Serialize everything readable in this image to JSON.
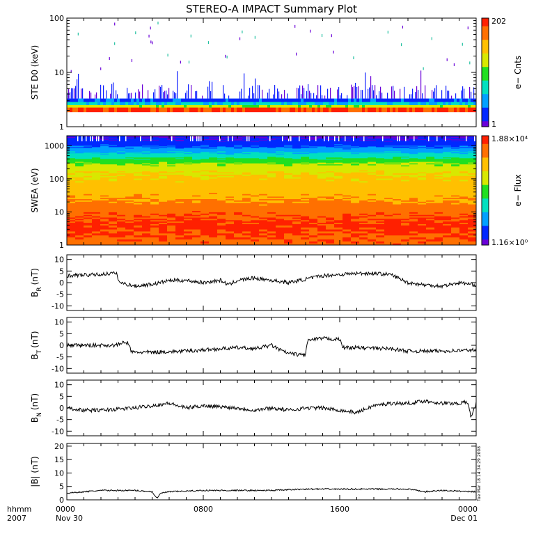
{
  "title": "STEREO-A IMPACT Summary Plot",
  "footer": {
    "format_label": "hhmm",
    "year_label": "2007",
    "stamp": "Tue Mar 18 14:34:29 2008"
  },
  "colors": {
    "spectrogram_scale": [
      "#6a00d8",
      "#0028ff",
      "#00a0ff",
      "#00e0c0",
      "#20e020",
      "#d8e800",
      "#ffc000",
      "#ff7000",
      "#ff2000"
    ],
    "line": "#000000"
  },
  "chart_data": [
    {
      "type": "heatmap",
      "id": "ste",
      "ylabel": "STE D0 (keV)",
      "yscale": "log",
      "ylim": [
        1,
        100
      ],
      "yticks": [
        1,
        10,
        100
      ],
      "colorbar": {
        "label": "e− Cnts",
        "min": "1",
        "max": "202"
      },
      "bands": [
        {
          "e_low": 1.85,
          "e_high": 2.25,
          "level": 0.95
        },
        {
          "e_low": 2.25,
          "e_high": 2.5,
          "level": 0.6
        },
        {
          "e_low": 2.5,
          "e_high": 2.85,
          "level": 0.33
        },
        {
          "e_low": 2.85,
          "e_high": 3.3,
          "level": 0.15
        }
      ],
      "sparse_max_kev": 10
    },
    {
      "type": "heatmap",
      "id": "swea",
      "ylabel": "SWEA (eV)",
      "yscale": "log",
      "ylim": [
        1,
        2000
      ],
      "yticks": [
        1,
        10,
        100,
        1000
      ],
      "colorbar": {
        "label": "e− Flux",
        "min": "1.16×10⁰",
        "max": "1.88×10⁴"
      },
      "energy_profile": [
        {
          "e": 1,
          "level": 0.9
        },
        {
          "e": 4,
          "level": 0.97
        },
        {
          "e": 10,
          "level": 0.9
        },
        {
          "e": 25,
          "level": 0.8
        },
        {
          "e": 60,
          "level": 0.74
        },
        {
          "e": 150,
          "level": 0.68
        },
        {
          "e": 300,
          "level": 0.55
        },
        {
          "e": 500,
          "level": 0.38
        },
        {
          "e": 800,
          "level": 0.22
        },
        {
          "e": 1300,
          "level": 0.1
        },
        {
          "e": 2000,
          "level": 0.05
        }
      ]
    },
    {
      "type": "line",
      "id": "br",
      "ylabel": "B",
      "ysub": "R",
      "yunit": "(nT)",
      "ylim": [
        -12,
        12
      ],
      "yticks": [
        -10,
        -5,
        0,
        5,
        10
      ],
      "x": [
        0,
        2,
        2.5,
        2.9,
        3.1,
        4,
        5.2,
        6,
        7,
        8,
        9,
        9.5,
        10,
        11,
        12,
        13,
        14,
        15,
        16,
        17,
        18,
        19,
        20,
        21,
        22,
        23,
        24
      ],
      "values": [
        3,
        3.5,
        4,
        4,
        0,
        -1.5,
        -0.5,
        1,
        1,
        0,
        1,
        -1,
        1,
        2,
        1,
        0,
        1.5,
        3,
        3.5,
        4,
        4,
        3.5,
        0,
        -1,
        -1.5,
        0,
        -1
      ]
    },
    {
      "type": "line",
      "id": "bt",
      "ylabel": "B",
      "ysub": "T",
      "yunit": "(nT)",
      "ylim": [
        -12,
        12
      ],
      "yticks": [
        -10,
        -5,
        0,
        5,
        10
      ],
      "x": [
        0,
        2.5,
        2.9,
        3.2,
        3.6,
        3.8,
        5,
        7,
        8,
        10,
        11,
        12,
        12.5,
        13,
        13.5,
        14,
        14.1,
        15,
        16,
        16.2,
        17,
        19,
        20,
        22,
        24
      ],
      "values": [
        0,
        0,
        0,
        1,
        1,
        -3,
        -3,
        -2.5,
        -2,
        -1,
        -1.5,
        0,
        -2,
        -3.5,
        -4,
        -4,
        2,
        3,
        2.5,
        -1,
        -1,
        -1.5,
        -2.5,
        -2.5,
        -2
      ]
    },
    {
      "type": "line",
      "id": "bn",
      "ylabel": "B",
      "ysub": "N",
      "yunit": "(nT)",
      "ylim": [
        -12,
        12
      ],
      "yticks": [
        -10,
        -5,
        0,
        5,
        10
      ],
      "x": [
        0,
        1,
        2,
        4,
        5,
        6,
        7,
        8,
        9,
        10,
        11,
        12,
        13,
        14,
        15,
        16,
        17,
        18,
        19,
        20,
        21,
        22,
        23,
        23.5,
        23.7,
        23.85,
        24
      ],
      "values": [
        0,
        -1,
        -1,
        0,
        1,
        2,
        0,
        1,
        0.5,
        0,
        -1,
        0,
        -1,
        0,
        0,
        -1,
        -2,
        1,
        2,
        2,
        3,
        2,
        2,
        2.5,
        -4,
        -1,
        2
      ]
    },
    {
      "type": "line",
      "id": "bmag",
      "ylabel": "|B| (nT)",
      "ylim": [
        0,
        21
      ],
      "yticks": [
        0,
        5,
        10,
        15,
        20
      ],
      "x": [
        0,
        2,
        4,
        5,
        5.3,
        5.5,
        6,
        8,
        10,
        12,
        14,
        16,
        18,
        20,
        21,
        22,
        24
      ],
      "values": [
        2.5,
        3.5,
        3.5,
        3,
        0.5,
        2.5,
        3,
        3.5,
        3.5,
        3.5,
        4,
        4,
        4,
        4,
        3,
        3.5,
        3
      ]
    }
  ],
  "time_axis": {
    "ticks": [
      {
        "hour": 0,
        "label": "0000",
        "sublabel": "Nov 30"
      },
      {
        "hour": 8,
        "label": "0800",
        "sublabel": ""
      },
      {
        "hour": 16,
        "label": "1600",
        "sublabel": ""
      },
      {
        "hour": 24,
        "label": "0000",
        "sublabel": "Dec 01"
      }
    ]
  }
}
